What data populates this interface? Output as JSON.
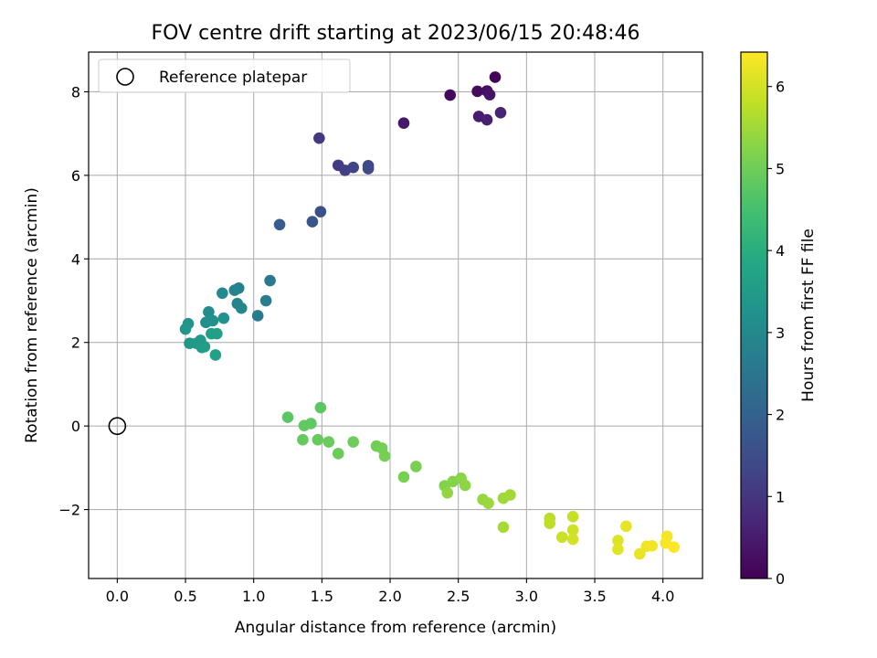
{
  "chart_data": {
    "type": "scatter",
    "title": "FOV centre drift starting at 2023/06/15 20:48:46",
    "xlabel": "Angular distance from reference (arcmin)",
    "ylabel": "Rotation from reference (arcmin)",
    "xlim": [
      -0.21,
      4.29
    ],
    "ylim": [
      -3.65,
      8.95
    ],
    "xticks": [
      0.0,
      0.5,
      1.0,
      1.5,
      2.0,
      2.5,
      3.0,
      3.5,
      4.0
    ],
    "xtick_labels": [
      "0.0",
      "0.5",
      "1.0",
      "1.5",
      "2.0",
      "2.5",
      "3.0",
      "3.5",
      "4.0"
    ],
    "yticks": [
      -2,
      0,
      2,
      4,
      6,
      8
    ],
    "ytick_labels": [
      "−2",
      "0",
      "2",
      "4",
      "6",
      "8"
    ],
    "grid": true,
    "legend": {
      "placement": "top-left",
      "entries": [
        "Reference platepar"
      ]
    },
    "reference_point": {
      "x": 0.0,
      "y": 0.0,
      "label": "Reference platepar"
    },
    "colorbar": {
      "label": "Hours from first FF file",
      "colormap": "viridis",
      "range": [
        0,
        6.42
      ],
      "ticks": [
        0,
        1,
        2,
        3,
        4,
        5,
        6
      ],
      "tick_labels": [
        "0",
        "1",
        "2",
        "3",
        "4",
        "5",
        "6"
      ]
    },
    "series": [
      {
        "x": [
          2.77,
          2.44,
          2.64,
          2.71,
          2.73,
          2.1,
          2.65,
          2.71,
          2.81,
          1.48,
          1.62,
          1.67,
          1.73,
          1.84,
          1.84,
          1.49,
          1.43,
          1.19,
          1.12,
          0.89,
          0.86,
          0.88,
          0.91,
          0.77,
          1.09,
          1.03,
          0.67,
          0.65,
          0.7,
          0.78,
          0.52,
          0.5,
          0.53,
          0.58,
          0.61,
          0.62,
          0.64,
          0.69,
          0.73,
          0.72,
          1.25,
          1.49,
          1.42,
          1.37,
          1.36,
          1.47,
          1.55,
          1.62,
          1.73,
          1.9,
          1.94,
          1.96,
          2.1,
          2.19,
          2.4,
          2.46,
          2.52,
          2.55,
          2.42,
          2.68,
          2.72,
          2.83,
          2.88,
          2.83,
          3.17,
          3.17,
          3.34,
          3.26,
          3.34,
          3.34,
          3.67,
          3.67,
          3.73,
          3.83,
          3.88,
          3.92,
          4.03,
          4.02,
          4.08
        ],
        "y": [
          8.35,
          7.92,
          8.01,
          8.02,
          7.93,
          7.25,
          7.41,
          7.33,
          7.5,
          6.89,
          6.24,
          6.12,
          6.19,
          6.23,
          6.16,
          5.13,
          4.89,
          4.82,
          3.48,
          3.3,
          3.25,
          2.93,
          2.82,
          3.18,
          3.0,
          2.64,
          2.73,
          2.48,
          2.52,
          2.58,
          2.45,
          2.32,
          1.98,
          1.98,
          2.05,
          1.88,
          1.9,
          2.21,
          2.21,
          1.7,
          0.21,
          0.44,
          0.06,
          0.01,
          -0.33,
          -0.33,
          -0.38,
          -0.66,
          -0.38,
          -0.48,
          -0.53,
          -0.72,
          -1.22,
          -0.97,
          -1.43,
          -1.33,
          -1.25,
          -1.42,
          -1.6,
          -1.76,
          -1.85,
          -1.73,
          -1.65,
          -2.42,
          -2.21,
          -2.33,
          -2.17,
          -2.66,
          -2.49,
          -2.71,
          -2.74,
          -2.95,
          -2.4,
          -3.06,
          -2.88,
          -2.87,
          -2.64,
          -2.8,
          -2.9
        ],
        "c": [
          0.05,
          0.12,
          0.2,
          0.28,
          0.35,
          0.42,
          0.5,
          0.57,
          0.65,
          1.05,
          1.12,
          1.2,
          1.28,
          1.36,
          1.44,
          1.58,
          1.7,
          1.9,
          2.6,
          2.75,
          2.82,
          2.88,
          2.95,
          3.02,
          2.7,
          2.65,
          3.1,
          3.15,
          3.2,
          3.25,
          3.3,
          3.35,
          3.38,
          3.42,
          3.46,
          3.5,
          3.54,
          3.58,
          3.62,
          3.66,
          4.75,
          4.78,
          4.81,
          4.84,
          4.87,
          4.9,
          4.93,
          4.96,
          4.99,
          5.02,
          5.05,
          5.08,
          5.11,
          5.14,
          5.2,
          5.24,
          5.28,
          5.32,
          5.36,
          5.4,
          5.44,
          5.48,
          5.52,
          5.56,
          5.75,
          5.8,
          5.85,
          5.9,
          5.95,
          6.0,
          6.1,
          6.14,
          6.18,
          6.22,
          6.26,
          6.3,
          6.33,
          6.36,
          6.4
        ]
      }
    ]
  }
}
